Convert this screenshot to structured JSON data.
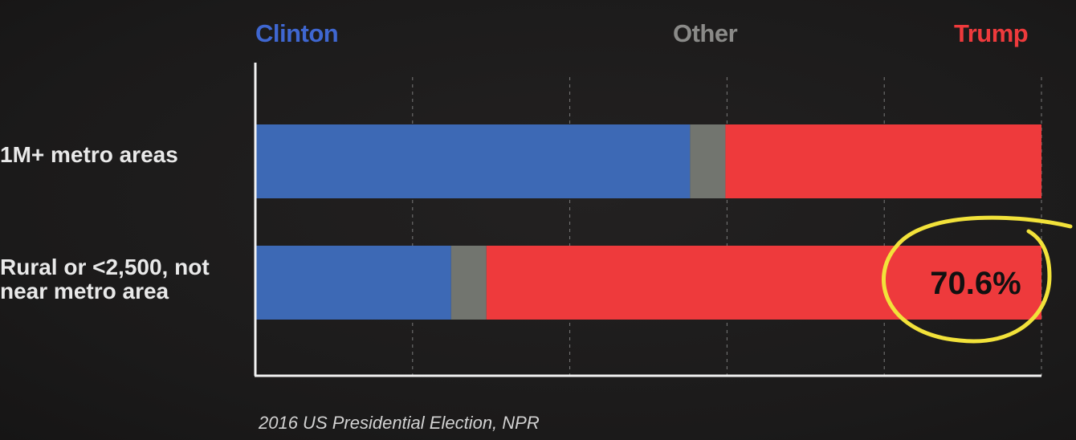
{
  "chart_data": {
    "type": "bar",
    "orientation": "horizontal",
    "stacked": true,
    "normalized_percent": true,
    "categories": [
      "1M+ metro areas",
      "Rural or <2,500, not\nnear metro area"
    ],
    "series": [
      {
        "name": "Clinton",
        "values": [
          55.3,
          24.9
        ]
      },
      {
        "name": "Other",
        "values": [
          4.5,
          4.5
        ]
      },
      {
        "name": "Trump",
        "values": [
          40.2,
          70.6
        ]
      }
    ],
    "xlim": [
      0,
      100
    ],
    "grid": true,
    "legend_placement": "top",
    "annotations": [
      {
        "category_index": 1,
        "series": "Trump",
        "text": "70.6%",
        "highlight": "circled"
      }
    ],
    "caption": "2016 US Presidential Election, NPR"
  },
  "colors": {
    "Clinton": "#3d69b5",
    "Other": "#72756f",
    "Trump": "#ee3a3c",
    "Clinton_legend": "#3f67d1",
    "Trump_legend": "#ee3a3c",
    "Other_legend": "#8a8a88",
    "highlight": "#f2e23a",
    "axis": "#f2f2f2",
    "gridline": "#7a7a7a"
  }
}
